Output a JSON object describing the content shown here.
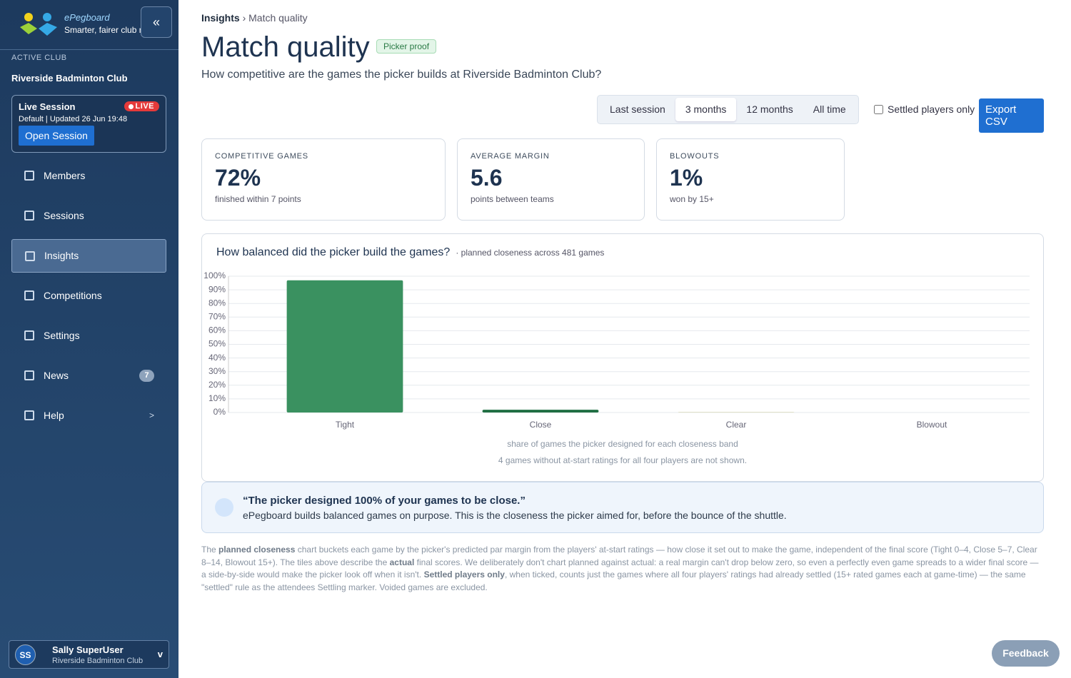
{
  "sidebar": {
    "brand": "ePegboard",
    "tagline": "Smarter, fairer club nights",
    "collapse": "«",
    "active_club_label": "ACTIVE CLUB",
    "club_name": "Riverside Badminton Club",
    "live_card": {
      "title": "Live Session",
      "badge": "LIVE",
      "meta": "Default | Updated 26 Jun 19:48",
      "button": "Open Session"
    },
    "nav": [
      {
        "label": "Members"
      },
      {
        "label": "Sessions"
      },
      {
        "label": "Insights"
      },
      {
        "label": "Competitions"
      },
      {
        "label": "Settings"
      },
      {
        "label": "News",
        "badge": "7"
      },
      {
        "label": "Help",
        "arrow": ">"
      }
    ],
    "nav_active": 2,
    "user": {
      "initials": "SS",
      "name": "Sally SuperUser",
      "club": "Riverside Badminton Club",
      "caret": "v"
    }
  },
  "header": {
    "breadcrumb": {
      "parent": "Insights",
      "separator": "›",
      "current": "Match quality"
    },
    "title": "Match quality",
    "badge": "Picker proof",
    "subtitle": "How competitive are the games the picker builds at Riverside Badminton Club?"
  },
  "filters": {
    "ranges": [
      "Last session",
      "3 months",
      "12 months",
      "All time"
    ],
    "active": 1,
    "checkbox": {
      "label": "Settled players only",
      "checked": false
    },
    "export": "Export CSV"
  },
  "kpis": [
    {
      "label": "COMPETITIVE GAMES",
      "value": "72%",
      "note": "finished within 7 points"
    },
    {
      "label": "AVERAGE MARGIN",
      "value": "5.6",
      "note": "points between teams"
    },
    {
      "label": "BLOWOUTS",
      "value": "1%",
      "note": "won by 15+"
    }
  ],
  "chart_data": {
    "type": "bar",
    "title": "How balanced did the picker build the games?",
    "subtitle": "· planned closeness across 481 games",
    "categories": [
      "Tight",
      "Close",
      "Clear",
      "Blowout"
    ],
    "values": [
      97,
      2,
      0.3,
      0
    ],
    "colors": [
      "#3a9160",
      "#1f6e42",
      "#cfcfa6",
      "#cfcfa6"
    ],
    "ylim": [
      0,
      100
    ],
    "yticks": [
      {
        "value": 0,
        "label": "0%"
      },
      {
        "value": 10,
        "label": "10%"
      },
      {
        "value": 20,
        "label": "20%"
      },
      {
        "value": 30,
        "label": "30%"
      },
      {
        "value": 40,
        "label": "40%"
      },
      {
        "value": 50,
        "label": "50%"
      },
      {
        "value": 60,
        "label": "60%"
      },
      {
        "value": 70,
        "label": "70%"
      },
      {
        "value": 80,
        "label": "80%"
      },
      {
        "value": 90,
        "label": "90%"
      },
      {
        "value": 100,
        "label": "100%"
      }
    ],
    "grid": true,
    "caption": "share of games the picker designed for each closeness band",
    "note": "4 games without at-start ratings for all four players are not shown."
  },
  "callout": {
    "quote": "“The picker designed 100% of your games to be close.”",
    "body": "ePegboard builds balanced games on purpose. This is the closeness the picker aimed for, before the bounce of the shuttle."
  },
  "footnote": [
    {
      "text": "The "
    },
    {
      "text": "planned closeness",
      "bold": true
    },
    {
      "text": " chart buckets each game by the picker's predicted par margin from the players' at-start ratings — how close it set out to make the game, independent of the final score (Tight 0–4, Close 5–7, Clear 8–14, Blowout 15+). The tiles above describe the "
    },
    {
      "text": "actual",
      "bold": true
    },
    {
      "text": " final scores. We deliberately don't chart planned against actual: a real margin can't drop below zero, so even a perfectly even game spreads to a wider final score — a side-by-side would make the picker look off when it isn't. "
    },
    {
      "text": "Settled players only",
      "bold": true
    },
    {
      "text": ", when ticked, counts just the games where all four players' ratings had already settled (15+ rated games each at game-time) — the same \"settled\" rule as the attendees Settling marker. Voided games are excluded."
    }
  ],
  "feedback": "Feedback"
}
